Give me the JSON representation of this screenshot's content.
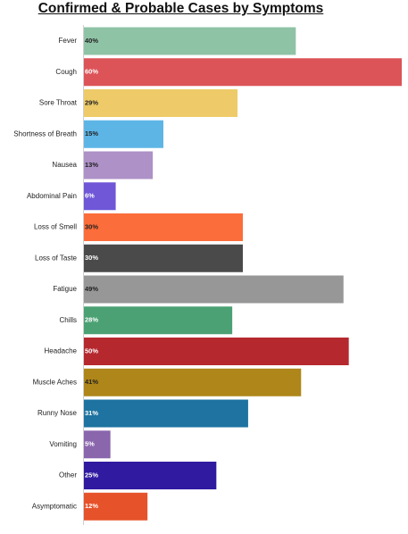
{
  "chart_data": {
    "type": "bar",
    "orientation": "horizontal",
    "title": "Confirmed & Probable Cases by Symptoms",
    "xlabel": "",
    "ylabel": "",
    "xlim": [
      0,
      60
    ],
    "grid": false,
    "legend": "none",
    "categories": [
      "Fever",
      "Cough",
      "Sore Throat",
      "Shortness of Breath",
      "Nausea",
      "Abdominal Pain",
      "Loss of Smell",
      "Loss of Taste",
      "Fatigue",
      "Chills",
      "Headache",
      "Muscle Aches",
      "Runny Nose",
      "Vomiting",
      "Other",
      "Asymptomatic"
    ],
    "values": [
      40,
      60,
      29,
      15,
      13,
      6,
      30,
      30,
      49,
      28,
      50,
      41,
      31,
      5,
      25,
      12
    ],
    "value_labels": [
      "40%",
      "60%",
      "29%",
      "15%",
      "13%",
      "6%",
      "30%",
      "30%",
      "49%",
      "28%",
      "50%",
      "41%",
      "31%",
      "5%",
      "25%",
      "12%"
    ],
    "colors": [
      "#8fc3a6",
      "#dc5458",
      "#eecb68",
      "#5db5e6",
      "#ae91c7",
      "#6f57d7",
      "#fb6d3a",
      "#4a4a4a",
      "#979797",
      "#4ba173",
      "#b5282e",
      "#ae8619",
      "#1e73a0",
      "#8a66ad",
      "#301aa0",
      "#e6522a"
    ],
    "label_colors": [
      "#222222",
      "#ffffff",
      "#222222",
      "#222222",
      "#222222",
      "#ffffff",
      "#222222",
      "#ffffff",
      "#222222",
      "#ffffff",
      "#ffffff",
      "#222222",
      "#ffffff",
      "#ffffff",
      "#ffffff",
      "#ffffff"
    ]
  }
}
